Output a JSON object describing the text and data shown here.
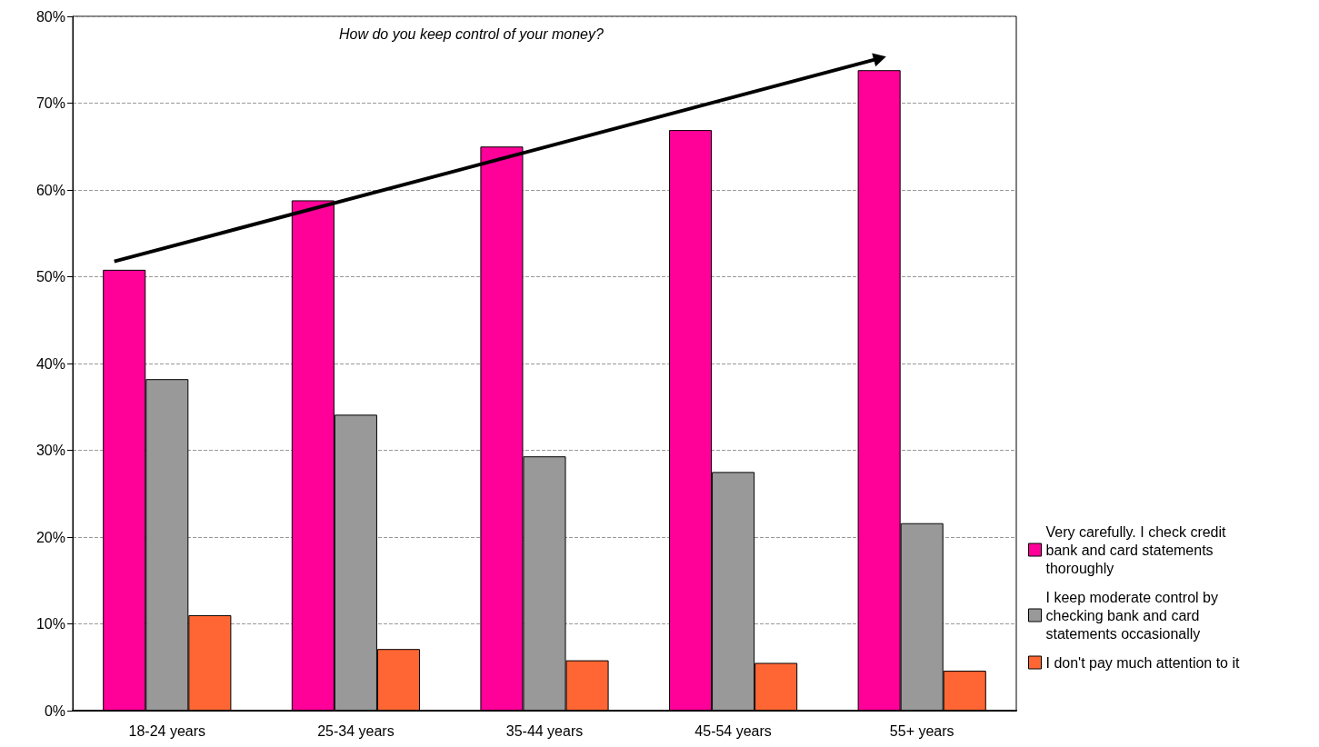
{
  "chart_data": {
    "type": "bar",
    "title": "How do you keep control of your money?",
    "categories": [
      "18-24 years",
      "25-34 years",
      "35-44 years",
      "45-54 years",
      "55+ years"
    ],
    "series": [
      {
        "name": "Very carefully. I check credit bank and card statements thoroughly",
        "color": "#ff0099",
        "values": [
          50.8,
          58.8,
          65.0,
          66.9,
          73.8
        ]
      },
      {
        "name": "I keep moderate control by checking bank and card statements occasionally",
        "color": "#999999",
        "values": [
          38.2,
          34.1,
          29.3,
          27.5,
          21.6
        ]
      },
      {
        "name": "I don't pay much attention to it",
        "color": "#ff6633",
        "values": [
          11.0,
          7.1,
          5.8,
          5.5,
          4.6
        ]
      }
    ],
    "ylim": [
      0,
      80
    ],
    "yticks": [
      {
        "value": 0,
        "label": "0%"
      },
      {
        "value": 10,
        "label": "10%"
      },
      {
        "value": 20,
        "label": "20%"
      },
      {
        "value": 30,
        "label": "30%"
      },
      {
        "value": 40,
        "label": "40%"
      },
      {
        "value": 50,
        "label": "50%"
      },
      {
        "value": 60,
        "label": "60%"
      },
      {
        "value": 70,
        "label": "70%"
      },
      {
        "value": 80,
        "label": "80%"
      }
    ],
    "grid": "y",
    "legend": "right"
  }
}
